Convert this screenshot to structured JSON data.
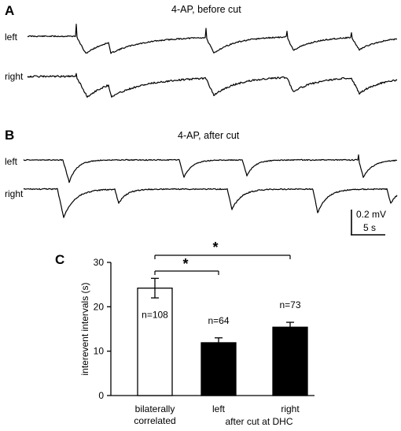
{
  "panel_a": {
    "letter": "A",
    "condition": "4-AP, before cut",
    "traces": [
      {
        "label": "left"
      },
      {
        "label": "right"
      }
    ]
  },
  "panel_b": {
    "letter": "B",
    "condition": "4-AP, after cut",
    "traces": [
      {
        "label": "left"
      },
      {
        "label": "right"
      }
    ]
  },
  "scalebar": {
    "voltage": "0.2 mV",
    "time": "5 s"
  },
  "panel_c": {
    "letter": "C",
    "significance_marks": [
      "*",
      "*"
    ]
  },
  "chart_data": {
    "type": "bar",
    "categories": [
      "bilaterally\ncorrelated",
      "left",
      "right"
    ],
    "category_lines": [
      [
        "bilaterally",
        "correlated"
      ],
      [
        "left"
      ],
      [
        "right"
      ]
    ],
    "group_label": "after cut at DHC",
    "ylabel": "interevent intervals (s)",
    "xlabel": "",
    "ylim": [
      0,
      30
    ],
    "yticks": [
      0,
      10,
      20,
      30
    ],
    "values": [
      24.2,
      11.9,
      15.4
    ],
    "errors": [
      2.2,
      1.1,
      1.1
    ],
    "counts": [
      "n=108",
      "n=64",
      "n=73"
    ],
    "fills": [
      "#ffffff",
      "#000000",
      "#000000"
    ],
    "significance": [
      {
        "from": 0,
        "to": 1,
        "mark": "*"
      },
      {
        "from": 0,
        "to": 2,
        "mark": "*"
      }
    ]
  }
}
